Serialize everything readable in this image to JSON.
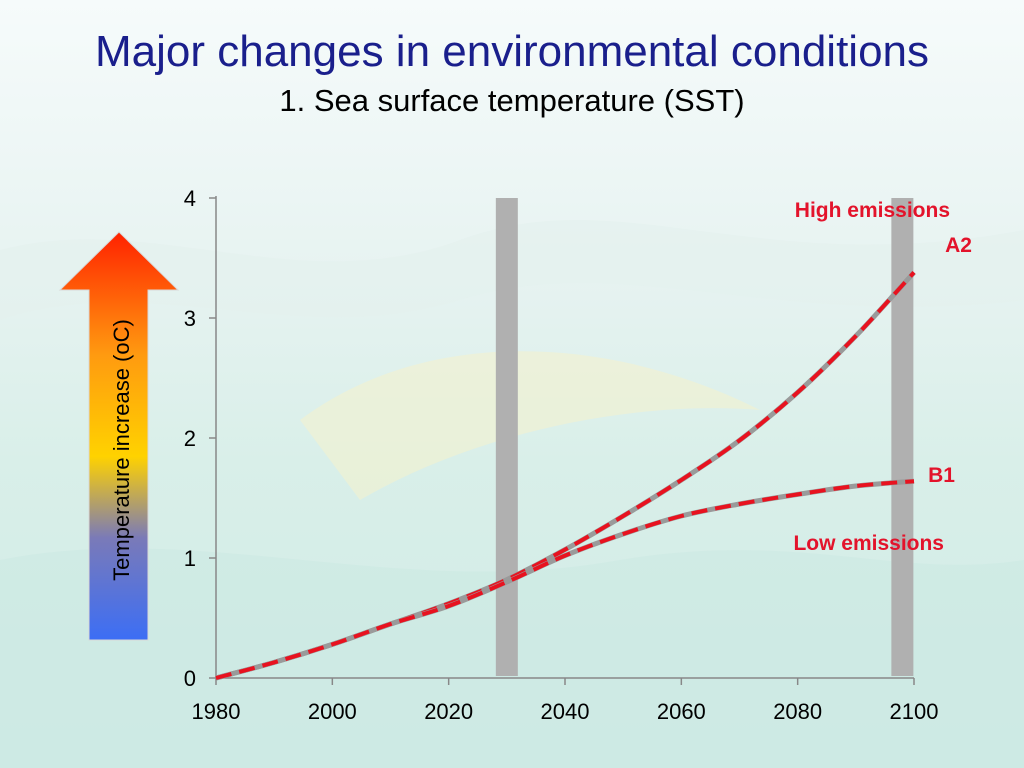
{
  "slide": {
    "title": "Major changes in environmental conditions",
    "subtitle": "1. Sea surface temperature (SST)"
  },
  "arrow": {
    "label": "Temperature increase (oC)",
    "colors": [
      "#ff2200",
      "#ff9a10",
      "#ffd200",
      "#7a7ab8",
      "#3c6ef5"
    ]
  },
  "colors": {
    "series": "#e8121f",
    "dash_shadow": "#9a9a9a",
    "bar": "#b0b0b0",
    "title": "#1a1f8c"
  },
  "chart_data": {
    "type": "line",
    "title": "1. Sea surface temperature (SST)",
    "xlabel": "",
    "ylabel": "Temperature increase (oC)",
    "xlim": [
      1980,
      2100
    ],
    "ylim": [
      0,
      4
    ],
    "x_ticks": [
      1980,
      2000,
      2020,
      2040,
      2060,
      2080,
      2100
    ],
    "y_ticks": [
      0,
      1,
      2,
      3,
      4
    ],
    "grid": false,
    "highlight_years": [
      2030,
      2098
    ],
    "series": [
      {
        "name": "A2",
        "x": [
          1980,
          1990,
          2000,
          2010,
          2020,
          2030,
          2040,
          2050,
          2060,
          2070,
          2080,
          2090,
          2100
        ],
        "y": [
          0.0,
          0.13,
          0.28,
          0.45,
          0.62,
          0.82,
          1.07,
          1.35,
          1.65,
          1.98,
          2.38,
          2.85,
          3.38
        ]
      },
      {
        "name": "B1",
        "x": [
          1980,
          1990,
          2000,
          2010,
          2020,
          2030,
          2040,
          2050,
          2060,
          2070,
          2080,
          2090,
          2100
        ],
        "y": [
          0.0,
          0.13,
          0.28,
          0.45,
          0.6,
          0.8,
          1.02,
          1.2,
          1.35,
          1.45,
          1.53,
          1.6,
          1.64
        ]
      }
    ],
    "annotations": {
      "high": "High emissions",
      "a2": "A2",
      "b1": "B1",
      "low": "Low emissions"
    }
  }
}
